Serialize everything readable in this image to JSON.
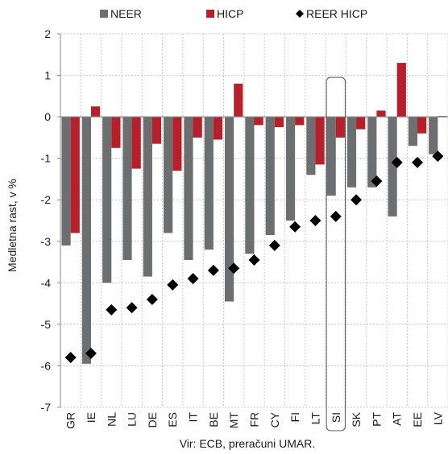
{
  "chart_data": {
    "type": "bar",
    "categories": [
      "GR",
      "IE",
      "NL",
      "LU",
      "DE",
      "ES",
      "IT",
      "BE",
      "MT",
      "FR",
      "CY",
      "FI",
      "LT",
      "SI",
      "SK",
      "PT",
      "AT",
      "EE",
      "LV"
    ],
    "series": [
      {
        "name": "NEER",
        "kind": "bar",
        "color": "#6d6e70",
        "values": [
          -3.1,
          -5.95,
          -4.0,
          -3.45,
          -3.85,
          -2.8,
          -3.45,
          -3.2,
          -4.45,
          -3.3,
          -2.85,
          -2.5,
          -1.4,
          -1.9,
          -1.7,
          -1.7,
          -2.4,
          -0.7,
          -0.9
        ]
      },
      {
        "name": "HICP",
        "kind": "bar",
        "color": "#b5202a",
        "values": [
          -2.8,
          0.25,
          -0.75,
          -1.25,
          -0.65,
          -1.3,
          -0.5,
          -0.55,
          0.8,
          -0.2,
          -0.25,
          -0.2,
          -1.15,
          -0.5,
          -0.3,
          0.15,
          1.3,
          -0.4,
          0.02
        ]
      },
      {
        "name": "REER HICP",
        "kind": "marker",
        "color": "#000000",
        "values": [
          -5.8,
          -5.7,
          -4.65,
          -4.6,
          -4.4,
          -4.05,
          -3.9,
          -3.7,
          -3.65,
          -3.45,
          -3.1,
          -2.65,
          -2.5,
          -2.4,
          -2.0,
          -1.55,
          -1.1,
          -1.1,
          -0.95
        ]
      }
    ],
    "ylabel": "Medletna rast, v %",
    "ylim": [
      -7,
      2
    ],
    "yticks": [
      "2",
      "1",
      "0",
      "-1",
      "-2",
      "-3",
      "-4",
      "-5",
      "-6",
      "-7"
    ],
    "grid": true,
    "legend_position": "top",
    "highlight_category": "SI",
    "source": "Vir: ECB, preračuni UMAR."
  }
}
